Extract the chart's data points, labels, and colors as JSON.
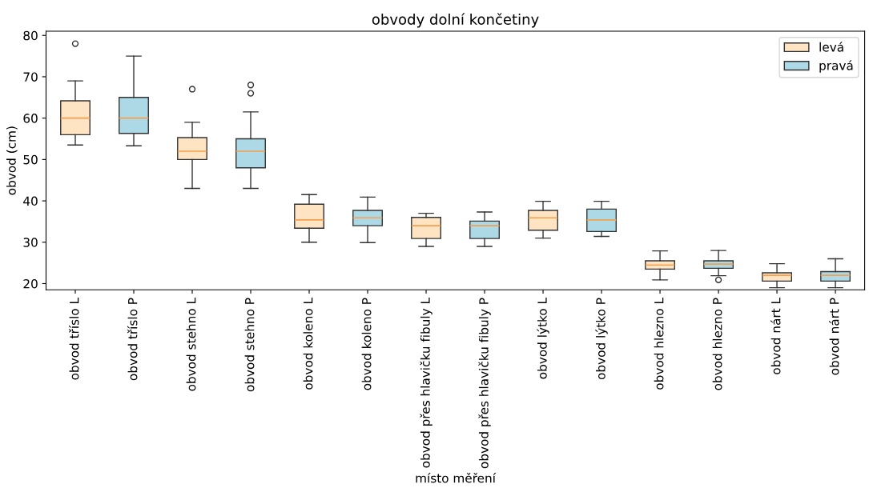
{
  "chart_data": {
    "type": "box",
    "title": "obvody dolní končetiny",
    "xlabel": "místo měření",
    "ylabel": "obvod (cm)",
    "categories": [
      "obvod tříslo L",
      "obvod tříslo P",
      "obvod stehno L",
      "obvod stehno P",
      "obvod koleno L",
      "obvod koleno P",
      "obvod přes hlavičku fibuly L",
      "obvod přes hlavičku fibuly P",
      "obvod lýtko L",
      "obvod lýtko P",
      "obvod hlezno L",
      "obvod hlezno P",
      "obvod nárt L",
      "obvod nárt P"
    ],
    "ylim": [
      18.5,
      81
    ],
    "yticks": [
      20,
      30,
      40,
      50,
      60,
      70,
      80
    ],
    "grid": false,
    "legend": "top right",
    "series": [
      {
        "name": "levá",
        "color": "#ffe4c4",
        "boxes": [
          {
            "low": 53.5,
            "q1": 56,
            "median": 60,
            "q3": 64.2,
            "high": 69,
            "outliers": [
              78
            ]
          },
          null,
          {
            "low": 43,
            "q1": 50,
            "median": 52,
            "q3": 55.3,
            "high": 59,
            "outliers": [
              67
            ]
          },
          null,
          {
            "low": 30,
            "q1": 33.4,
            "median": 35.4,
            "q3": 39.2,
            "high": 41.5
          },
          null,
          {
            "low": 29,
            "q1": 30.9,
            "median": 34,
            "q3": 36,
            "high": 37
          },
          null,
          {
            "low": 31,
            "q1": 32.9,
            "median": 35.9,
            "q3": 37.7,
            "high": 39.9
          },
          null,
          {
            "low": 20.9,
            "q1": 23.5,
            "median": 24.5,
            "q3": 25.5,
            "high": 27.9
          },
          null,
          {
            "low": 19,
            "q1": 20.6,
            "median": 22,
            "q3": 22.6,
            "high": 24.8
          },
          null
        ]
      },
      {
        "name": "pravá",
        "color": "#add8e6",
        "boxes": [
          null,
          {
            "low": 53.3,
            "q1": 56.3,
            "median": 60,
            "q3": 65,
            "high": 75
          },
          null,
          {
            "low": 43,
            "q1": 48,
            "median": 52,
            "q3": 55,
            "high": 61.5,
            "outliers": [
              66,
              68
            ]
          },
          null,
          {
            "low": 29.9,
            "q1": 34,
            "median": 35.9,
            "q3": 37.7,
            "high": 40.9
          },
          null,
          {
            "low": 29,
            "q1": 30.9,
            "median": 34,
            "q3": 35.1,
            "high": 37.3
          },
          null,
          {
            "low": 31.4,
            "q1": 32.6,
            "median": 35.4,
            "q3": 38,
            "high": 39.9
          },
          null,
          {
            "low": 21.9,
            "q1": 23.7,
            "median": 24.7,
            "q3": 25.5,
            "high": 28,
            "outliers": [
              20.9
            ]
          },
          null,
          {
            "low": 19,
            "q1": 20.6,
            "median": 22,
            "q3": 22.9,
            "high": 26
          }
        ]
      }
    ]
  }
}
